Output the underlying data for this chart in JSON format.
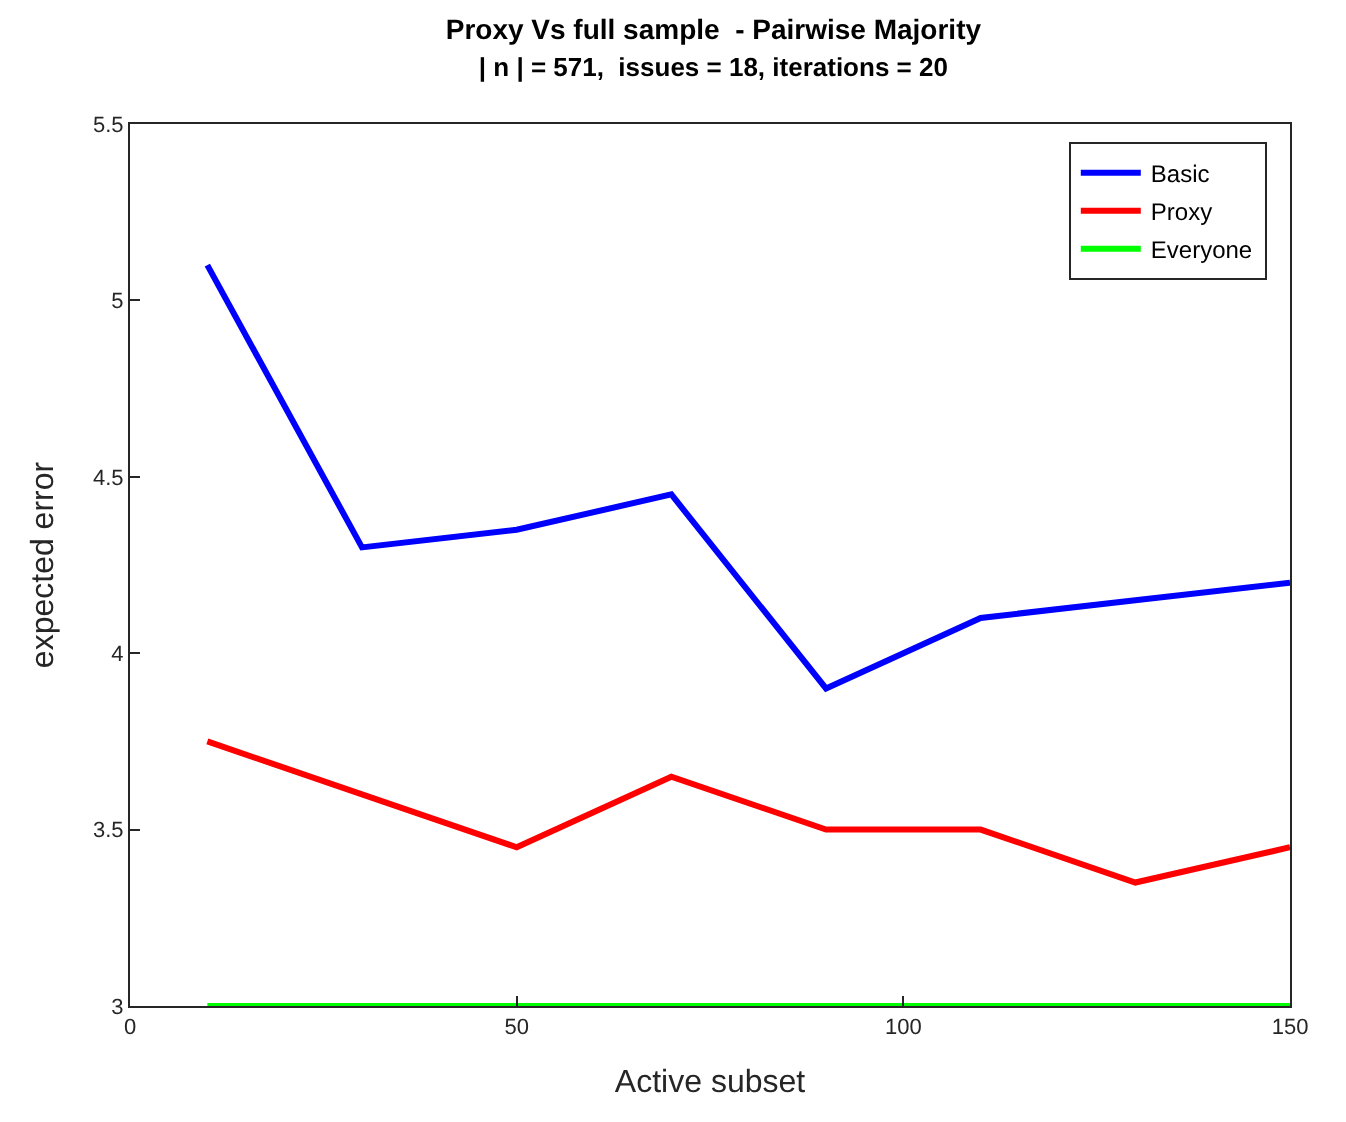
{
  "chart_data": {
    "type": "line",
    "title": "Proxy Vs full sample  - Pairwise Majority",
    "subtitle": "| n | = 571,  issues = 18, iterations = 20",
    "xlabel": "Active subset",
    "ylabel": "expected error",
    "x": [
      10,
      30,
      50,
      70,
      90,
      110,
      130,
      150
    ],
    "series": [
      {
        "name": "Basic",
        "color": "#0000ff",
        "values": [
          5.1,
          4.3,
          4.35,
          4.45,
          3.9,
          4.1,
          4.15,
          4.2
        ]
      },
      {
        "name": "Proxy",
        "color": "#ff0000",
        "values": [
          3.75,
          3.6,
          3.45,
          3.65,
          3.5,
          3.5,
          3.35,
          3.45
        ]
      },
      {
        "name": "Everyone",
        "color": "#00ff00",
        "values": [
          3,
          3,
          3,
          3,
          3,
          3,
          3,
          3
        ]
      }
    ],
    "xlim": [
      0,
      150
    ],
    "xticks": [
      0,
      50,
      100,
      150
    ],
    "ylim": [
      3,
      5.5
    ],
    "yticks": [
      3,
      3.5,
      4,
      4.5,
      5,
      5.5
    ],
    "legend": "top right",
    "marker": "none",
    "line_style": "solid"
  }
}
